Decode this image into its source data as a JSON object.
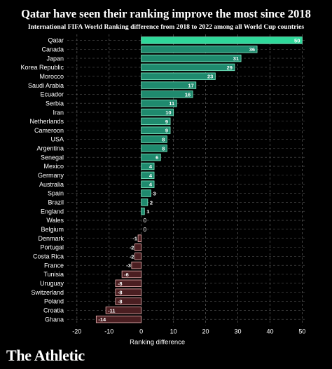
{
  "title": "Qatar have seen their ranking improve the most since 2018",
  "subtitle": "International FIFA World Ranking difference from 2018 to 2022 among all World Cup countries",
  "brand": "The Athletic",
  "colors": {
    "background": "#000000",
    "positive_fill": "#1f8a6e",
    "positive_stroke": "#7ff0c8",
    "top_fill": "#2fd89a",
    "negative_fill": "#4a1e21",
    "negative_stroke": "#f0b5b5",
    "grid": "#555555",
    "text": "#ffffff"
  },
  "chart_data": {
    "type": "bar",
    "orientation": "horizontal",
    "categories": [
      "Qatar",
      "Canada",
      "Japan",
      "Korea Republic",
      "Morocco",
      "Saudi Arabia",
      "Ecuador",
      "Serbia",
      "Iran",
      "Netherlands",
      "Cameroon",
      "USA",
      "Argentina",
      "Senegal",
      "Mexico",
      "Germany",
      "Australia",
      "Spain",
      "Brazil",
      "England",
      "Wales",
      "Belgium",
      "Denmark",
      "Portugal",
      "Costa Rica",
      "France",
      "Tunisia",
      "Uruguay",
      "Switzerland",
      "Poland",
      "Croatia",
      "Ghana"
    ],
    "values": [
      50,
      36,
      31,
      29,
      23,
      17,
      16,
      11,
      10,
      9,
      9,
      8,
      8,
      6,
      4,
      4,
      4,
      3,
      2,
      1,
      0,
      0,
      -1,
      -2,
      -2,
      -3,
      -6,
      -8,
      -8,
      -8,
      -11,
      -14
    ],
    "xlabel": "Ranking difference",
    "ylabel": "",
    "xlim": [
      -23,
      51
    ],
    "xticks": [
      -20,
      -10,
      0,
      10,
      20,
      30,
      40,
      50
    ],
    "grid": true
  }
}
